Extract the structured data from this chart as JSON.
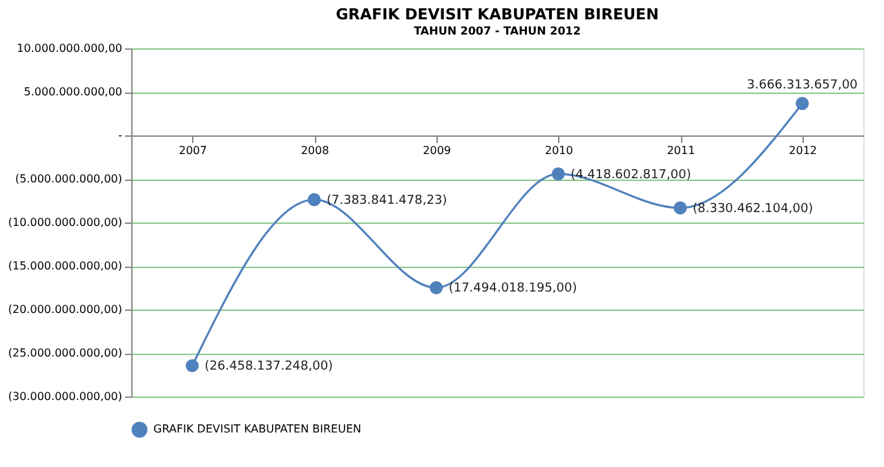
{
  "chart_data": {
    "type": "line",
    "title": "GRAFIK DEVISIT  KABUPATEN BIREUEN",
    "subtitle": "TAHUN 2007 - TAHUN 2012",
    "categories": [
      "2007",
      "2008",
      "2009",
      "2010",
      "2011",
      "2012"
    ],
    "series": [
      {
        "name": "GRAFIK DEVISIT  KABUPATEN BIREUEN",
        "color": "#4f81bd",
        "values": [
          -26458137248.0,
          -7383841478.23,
          -17494018195.0,
          -4418602817.0,
          -8330462104.0,
          3666313657.0
        ],
        "value_labels": [
          "(26.458.137.248,00)",
          "(7.383.841.478,23)",
          "(17.494.018.195,00)",
          "(4.418.602.817,00)",
          "(8.330.462.104,00)",
          "3.666.313.657,00"
        ]
      }
    ],
    "ylim": [
      -30000000000,
      10000000000
    ],
    "yticks": [
      {
        "value": 10000000000,
        "label": "10.000.000.000,00"
      },
      {
        "value": 5000000000,
        "label": "5.000.000.000,00"
      },
      {
        "value": 0,
        "label": "-"
      },
      {
        "value": -5000000000,
        "label": "(5.000.000.000,00)"
      },
      {
        "value": -10000000000,
        "label": "(10.000.000.000,00)"
      },
      {
        "value": -15000000000,
        "label": "(15.000.000.000,00)"
      },
      {
        "value": -20000000000,
        "label": "(20.000.000.000,00)"
      },
      {
        "value": -25000000000,
        "label": "(25.000.000.000,00)"
      },
      {
        "value": -30000000000,
        "label": "(30.000.000.000,00)"
      }
    ],
    "grid": "y",
    "legend": "bottom",
    "marker": "circle",
    "line_style": "solid"
  }
}
